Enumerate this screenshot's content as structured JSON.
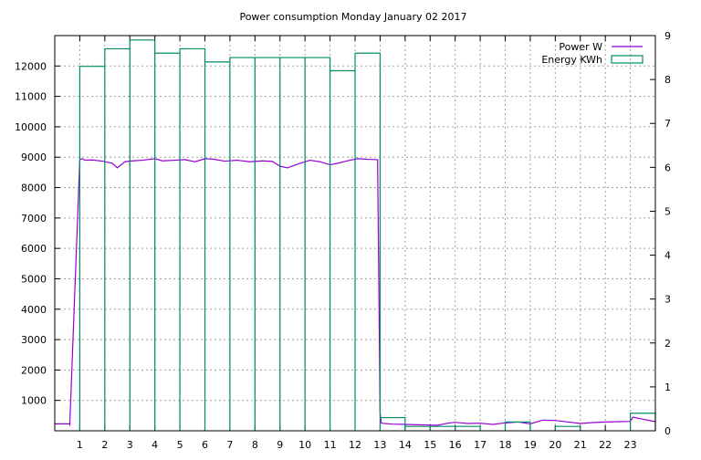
{
  "chart_data": {
    "type": "line",
    "title": "Power consumption Monday January 02 2017",
    "grid": true,
    "legend_position": "top-right",
    "x": {
      "range": [
        0,
        24
      ],
      "ticks": [
        1,
        2,
        3,
        4,
        5,
        6,
        7,
        8,
        9,
        10,
        11,
        12,
        13,
        14,
        15,
        16,
        17,
        18,
        19,
        20,
        21,
        22,
        23
      ]
    },
    "y_left": {
      "range": [
        0,
        13000
      ],
      "ticks": [
        1000,
        2000,
        3000,
        4000,
        5000,
        6000,
        7000,
        8000,
        9000,
        10000,
        11000,
        12000
      ]
    },
    "y_right": {
      "range": [
        0,
        9
      ],
      "ticks": [
        0,
        1,
        2,
        3,
        4,
        5,
        6,
        7,
        8,
        9
      ]
    },
    "series": [
      {
        "name": "Power W",
        "axis": "left",
        "color": "#9400d3",
        "style": "line",
        "x": [
          0,
          0.58,
          0.6,
          1.0,
          1.1,
          1.2,
          1.5,
          1.9,
          2.3,
          2.5,
          2.8,
          3.1,
          3.5,
          4.0,
          4.3,
          4.8,
          5.2,
          5.6,
          6.0,
          6.3,
          6.8,
          7.3,
          7.8,
          8.3,
          8.7,
          9.0,
          9.3,
          9.8,
          10.2,
          10.6,
          11.0,
          11.3,
          11.8,
          12.1,
          12.5,
          12.9,
          13.0,
          13.05,
          13.5,
          14.0,
          14.5,
          15.0,
          15.3,
          15.7,
          16.0,
          16.5,
          17.0,
          17.5,
          18.0,
          18.5,
          19.0,
          19.5,
          20.0,
          20.5,
          21.0,
          21.5,
          22.0,
          22.5,
          23.0,
          23.1,
          23.5,
          24.0
        ],
        "values": [
          230,
          230,
          200,
          8920,
          8950,
          8900,
          8910,
          8870,
          8800,
          8650,
          8850,
          8880,
          8900,
          8950,
          8880,
          8900,
          8920,
          8850,
          8950,
          8940,
          8870,
          8900,
          8850,
          8880,
          8860,
          8700,
          8650,
          8800,
          8900,
          8850,
          8750,
          8800,
          8900,
          8950,
          8930,
          8920,
          600,
          250,
          220,
          210,
          200,
          190,
          180,
          250,
          280,
          240,
          250,
          210,
          260,
          290,
          230,
          350,
          340,
          290,
          240,
          270,
          290,
          300,
          310,
          450,
          380,
          300
        ]
      },
      {
        "name": "Energy KWh",
        "axis": "right",
        "color": "#008b69",
        "style": "steps",
        "x": [
          0,
          1,
          2,
          3,
          4,
          5,
          6,
          7,
          8,
          9,
          10,
          11,
          12,
          13,
          14,
          15,
          16,
          17,
          18,
          19,
          20,
          21,
          22,
          23
        ],
        "values": [
          0,
          8.3,
          8.7,
          8.9,
          8.6,
          8.7,
          8.4,
          8.5,
          8.5,
          8.5,
          8.5,
          8.2,
          8.6,
          0.3,
          0.1,
          0.1,
          0.1,
          0,
          0.2,
          0,
          0.1,
          0,
          0,
          0.4
        ]
      }
    ]
  }
}
